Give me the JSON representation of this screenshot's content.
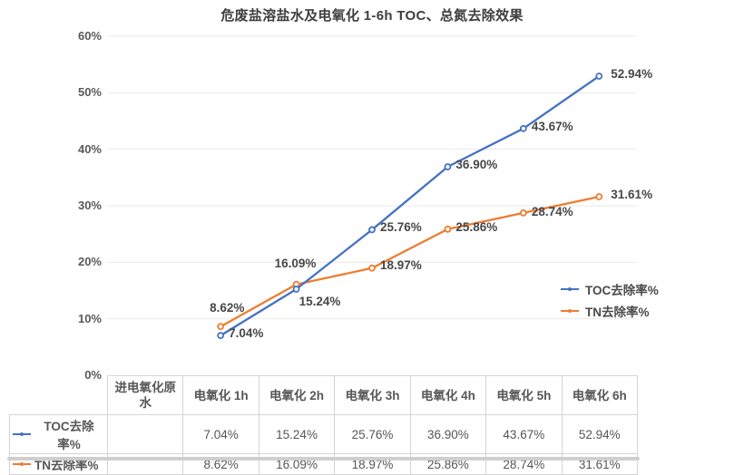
{
  "title": "危废盐溶盐水及电氧化 1-6h TOC、总氮去除效果",
  "chart_data": {
    "type": "line",
    "title": "危废盐溶盐水及电氧化 1-6h TOC、总氮去除效果",
    "categories": [
      "进电氧化原水",
      "电氧化 1h",
      "电氧化 2h",
      "电氧化 3h",
      "电氧化 4h",
      "电氧化 5h",
      "电氧化 6h"
    ],
    "series": [
      {
        "name": "TOC去除率%",
        "color": "#4472C4",
        "values": [
          null,
          7.04,
          15.24,
          25.76,
          36.9,
          43.67,
          52.94
        ],
        "point_labels": [
          "",
          "7.04%",
          "15.24%",
          "25.76%",
          "36.90%",
          "43.67%",
          "52.94%"
        ]
      },
      {
        "name": "TN去除率%",
        "color": "#ED7D31",
        "values": [
          null,
          8.62,
          16.09,
          18.97,
          25.86,
          28.74,
          31.61
        ],
        "point_labels": [
          "",
          "8.62%",
          "16.09%",
          "18.97%",
          "25.86%",
          "28.74%",
          "31.61%"
        ]
      }
    ],
    "xlabel": "",
    "ylabel": "",
    "ylim": [
      0,
      60
    ],
    "ytick_step": 10,
    "ytick_labels": [
      "0%",
      "10%",
      "20%",
      "30%",
      "40%",
      "50%",
      "60%"
    ],
    "grid": true,
    "legend_position": "right-middle",
    "marker_style": "hollow-circle"
  },
  "legend": {
    "items": [
      {
        "label": "TOC去除率%",
        "color": "#4472C4"
      },
      {
        "label": "TN去除率%",
        "color": "#ED7D31"
      }
    ]
  },
  "table": {
    "col_headers": [
      "进电氧化原水",
      "电氧化 1h",
      "电氧化 2h",
      "电氧化 3h",
      "电氧化 4h",
      "电氧化 5h",
      "电氧化 6h"
    ],
    "rows": [
      {
        "label": "TOC去除率%",
        "color": "#4472C4",
        "cells": [
          "",
          "7.04%",
          "15.24%",
          "25.76%",
          "36.90%",
          "43.67%",
          "52.94%"
        ]
      },
      {
        "label": "TN去除率%",
        "color": "#ED7D31",
        "cells": [
          "",
          "8.62%",
          "16.09%",
          "18.97%",
          "25.86%",
          "28.74%",
          "31.61%"
        ]
      }
    ]
  },
  "colors": {
    "toc_blue": "#4472C4",
    "tn_orange": "#ED7D31",
    "gridline": "#e9e9e9",
    "axis_line": "#c9c9c9",
    "table_border": "#d4d4d4",
    "text": "#565656",
    "title_text": "#3e3e3e"
  }
}
